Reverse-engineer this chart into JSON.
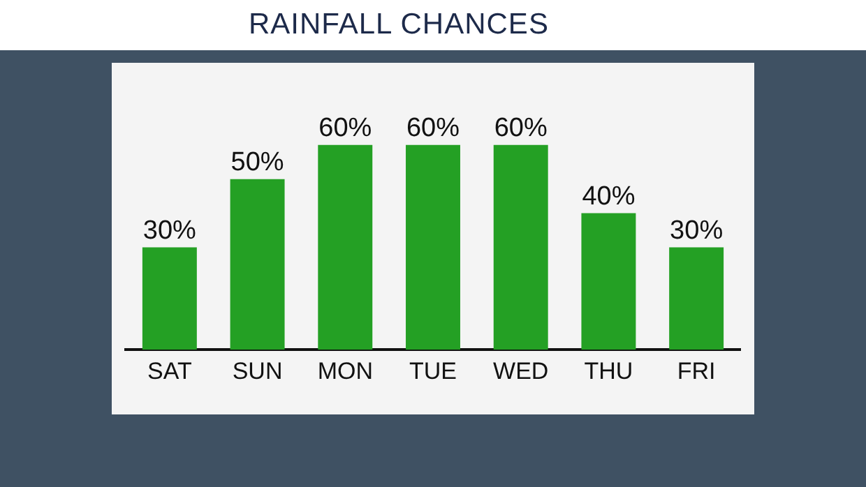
{
  "chart_data": {
    "type": "bar",
    "title": "RAINFALL CHANCES",
    "categories": [
      "SAT",
      "SUN",
      "MON",
      "TUE",
      "WED",
      "THU",
      "FRI"
    ],
    "values": [
      30,
      50,
      60,
      60,
      60,
      40,
      30
    ],
    "value_labels": [
      "30%",
      "50%",
      "60%",
      "60%",
      "60%",
      "40%",
      "30%"
    ],
    "color": "#24a024"
  }
}
